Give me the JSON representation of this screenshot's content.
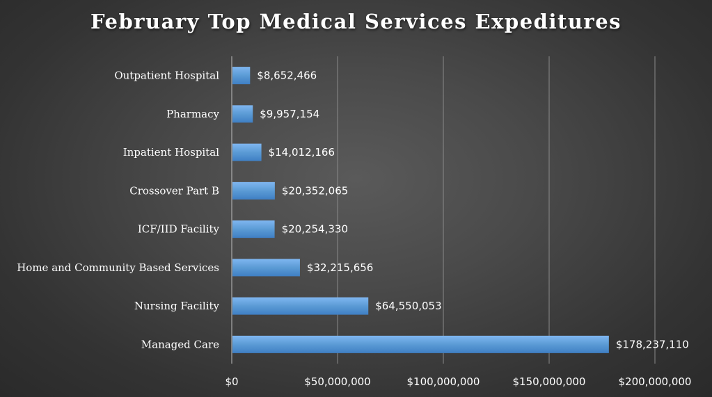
{
  "chart_data": {
    "type": "bar",
    "orientation": "horizontal",
    "title": "February Top Medical Services Expeditures",
    "categories": [
      "Outpatient Hospital",
      "Pharmacy",
      "Inpatient Hospital",
      "Crossover Part B",
      "ICF/IID Facility",
      "Home and Community Based Services",
      "Nursing Facility",
      "Managed Care"
    ],
    "values": [
      8652466,
      9957154,
      14012166,
      20352065,
      20254330,
      32215656,
      64550053,
      178237110
    ],
    "data_labels": [
      "$8,652,466",
      "$9,957,154",
      "$14,012,166",
      "$20,352,065",
      "$20,254,330",
      "$32,215,656",
      "$64,550,053",
      "$178,237,110"
    ],
    "xlim": [
      0,
      200000000
    ],
    "xticks": [
      0,
      50000000,
      100000000,
      150000000,
      200000000
    ],
    "xtick_labels": [
      "$0",
      "$50,000,000",
      "$100,000,000",
      "$150,000,000",
      "$200,000,000"
    ],
    "xlabel": "",
    "ylabel": "",
    "grid": "vertical",
    "legend": "none",
    "colors": {
      "bar_top": "#7fb6f0",
      "bar_mid": "#5b9bd5",
      "bar_bottom": "#3f7fc4",
      "grid": "#8a8a8a",
      "axis": "#bfbfbf",
      "text": "#ffffff"
    }
  }
}
